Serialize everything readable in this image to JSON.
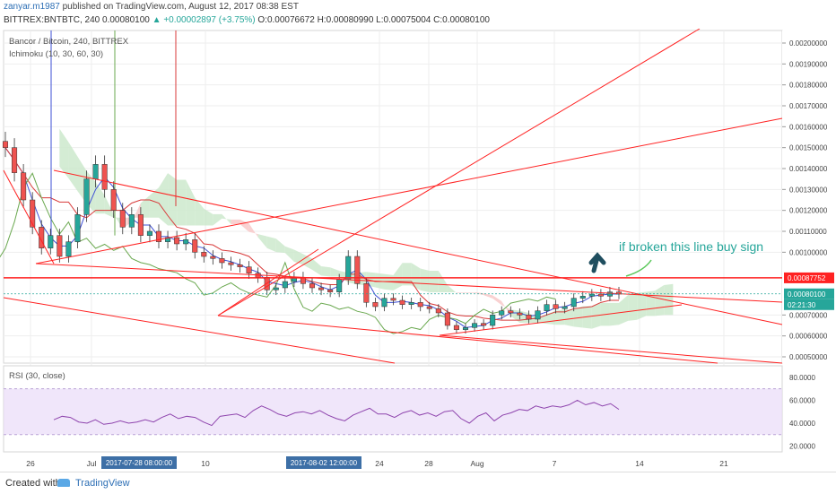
{
  "header": {
    "author": "zanyar.m1987",
    "published": "published on TradingView.com, August 12, 2017 08:38 EST",
    "symbol_line": "BITTREX:BNTBTC, 240  0.00080100",
    "change": "▲ +0.00002897 (+3.75%)",
    "ohlc": "O:0.00076672 H:0.00080990 L:0.00075004 C:0.00080100"
  },
  "legend": {
    "title": "Bancor / Bitcoin, 240, BITTREX",
    "indicator": "Ichimoku (10, 30, 60, 30)",
    "rsi": "RSI (30, close)"
  },
  "annotation": {
    "text": "if broken this line buy sign"
  },
  "footer": {
    "created_with": "Created with",
    "brand": "TradingView"
  },
  "colors": {
    "bull": "#26a69a",
    "bear": "#ef5350",
    "trendline": "#ff2222",
    "tenkan": "#3d4fd6",
    "kijun": "#d83a3a",
    "chikou": "#6aa84f",
    "cloud_bear": "#f7c6c6",
    "cloud_bull": "#c9e7c9",
    "rsi_line": "#8e44ad",
    "rsi_band": "#eadcf8"
  },
  "chart_data": {
    "type": "candlestick",
    "symbol": "BITTREX:BNTBTC",
    "interval": "240",
    "ylim": [
      0.00047,
      0.00206
    ],
    "yticks": [
      "0.00200000",
      "0.00190000",
      "0.00180000",
      "0.00170000",
      "0.00160000",
      "0.00150000",
      "0.00140000",
      "0.00130000",
      "0.00120000",
      "0.00110000",
      "0.00100000",
      "0.00070000",
      "0.00060000",
      "0.00050000"
    ],
    "xticks": [
      "26",
      "Jul",
      "10",
      "24",
      "28",
      "Aug",
      "7",
      "14",
      "21"
    ],
    "crosshair_x_labels": [
      "2017-07-28 08:00:00",
      "2017-08-02 12:00:00"
    ],
    "price_labels": [
      {
        "value": 0.00087752,
        "text": "0.00087752",
        "color": "#ff2222"
      },
      {
        "value": 0.000801,
        "text": "0.00080100",
        "color": "#26a69a"
      },
      {
        "value": 0.00075,
        "text": "02:21:30",
        "color": "#26a69a"
      }
    ],
    "horizontal_line": 0.00087752,
    "close_series": [
      0.0015,
      0.00138,
      0.00125,
      0.00112,
      0.00102,
      0.00108,
      0.00098,
      0.00105,
      0.00118,
      0.00135,
      0.00142,
      0.0013,
      0.0012,
      0.00112,
      0.00118,
      0.00108,
      0.0011,
      0.00105,
      0.00107,
      0.00104,
      0.00106,
      0.001,
      0.00098,
      0.00097,
      0.00095,
      0.00094,
      0.00093,
      0.0009,
      0.00088,
      0.00082,
      0.00083,
      0.00086,
      0.00088,
      0.00085,
      0.00083,
      0.00082,
      0.00081,
      0.00087,
      0.00098,
      0.00085,
      0.00076,
      0.00074,
      0.00078,
      0.00077,
      0.00075,
      0.00076,
      0.00074,
      0.00073,
      0.00071,
      0.00065,
      0.00063,
      0.00064,
      0.00066,
      0.00065,
      0.0007,
      0.00072,
      0.00071,
      0.0007,
      0.00068,
      0.00072,
      0.00075,
      0.00073,
      0.00074,
      0.00078,
      0.00079,
      0.0008,
      0.00079,
      0.00081,
      0.0008
    ],
    "rsi": {
      "ylim": [
        15,
        90
      ],
      "yticks": [
        "80.0000",
        "60.0000",
        "40.0000",
        "20.0000"
      ],
      "bands": [
        70,
        30
      ],
      "values": [
        43,
        46,
        45,
        41,
        40,
        43,
        39,
        40,
        42,
        40,
        41,
        43,
        41,
        45,
        48,
        44,
        46,
        45,
        41,
        38,
        46,
        47,
        48,
        45,
        51,
        55,
        52,
        48,
        46,
        49,
        50,
        48,
        51,
        47,
        44,
        42,
        47,
        50,
        53,
        48,
        48,
        45,
        49,
        51,
        47,
        49,
        46,
        50,
        51,
        44,
        40,
        46,
        49,
        42,
        47,
        49,
        52,
        51,
        55,
        53,
        55,
        54,
        56,
        60,
        56,
        58,
        55,
        57,
        52
      ]
    }
  }
}
